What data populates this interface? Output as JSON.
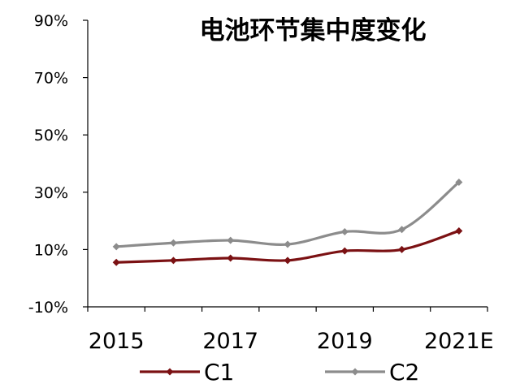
{
  "chart_data": {
    "type": "line",
    "title": "电池环节集中度变化",
    "xlabel": "",
    "ylabel": "",
    "x": [
      "2015",
      "2016",
      "2017",
      "2018",
      "2019",
      "2020",
      "2021E"
    ],
    "x_tick_labels": [
      "2015",
      "2017",
      "2019",
      "2021E"
    ],
    "y_tick_labels": [
      "-10%",
      "10%",
      "30%",
      "50%",
      "70%",
      "90%"
    ],
    "ylim": [
      -10,
      90
    ],
    "y_unit": "%",
    "grid": false,
    "legend_position": "bottom",
    "series": [
      {
        "name": "C1",
        "color": "#7b1113",
        "values": [
          5.5,
          6.2,
          7.0,
          6.2,
          9.5,
          10.0,
          16.5
        ]
      },
      {
        "name": "C2",
        "color": "#8c8c8c",
        "values": [
          11.0,
          12.3,
          13.2,
          11.8,
          16.2,
          17.0,
          33.5
        ]
      }
    ]
  }
}
